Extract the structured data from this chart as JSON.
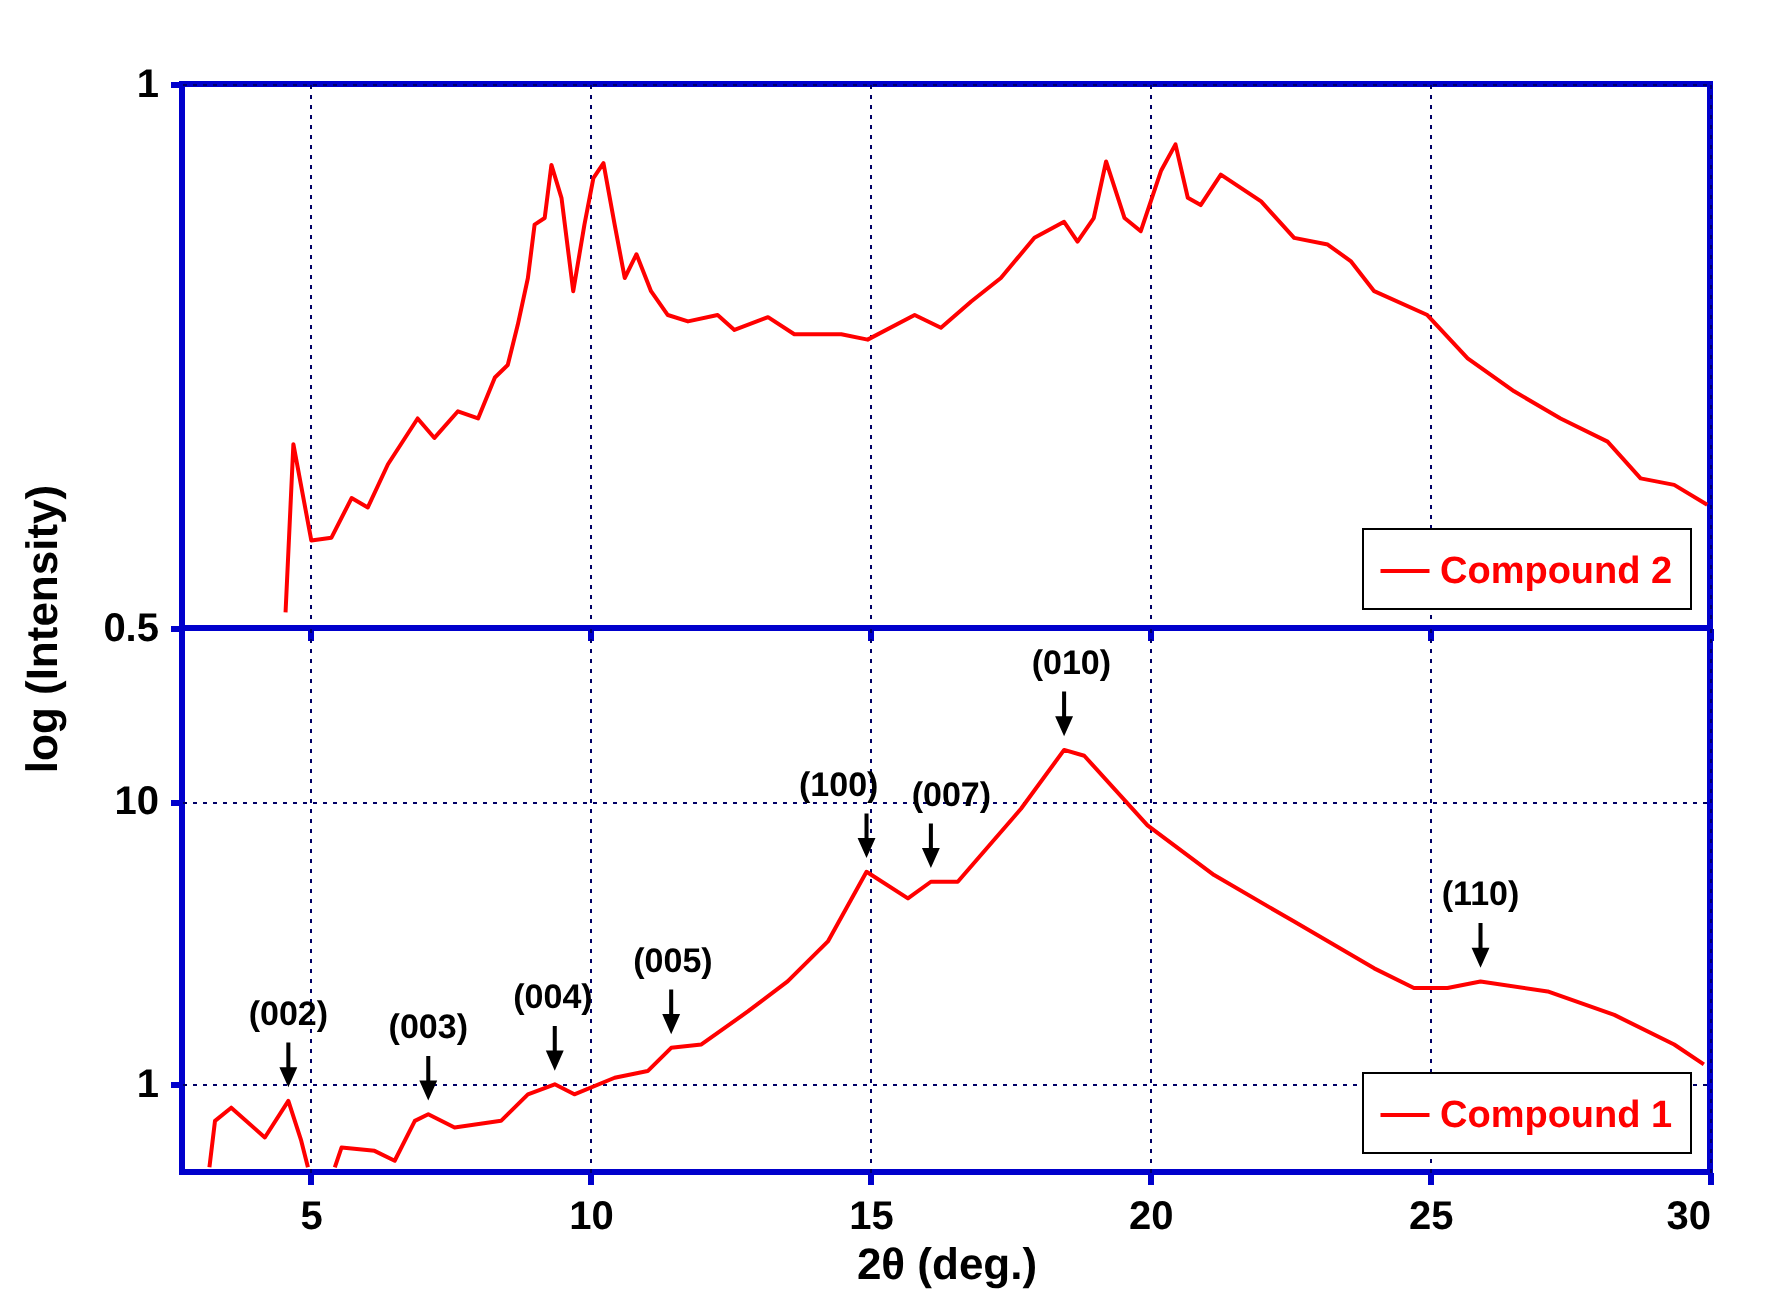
{
  "chart_data": [
    {
      "type": "line",
      "log": true,
      "grid": true,
      "legend": "bottom right",
      "tick_labels": "y",
      "line_style": "solid",
      "xlim": [
        2.7,
        30
      ],
      "xticks": [
        5,
        10,
        15,
        20,
        25,
        30
      ],
      "ylim": [
        0.5,
        1
      ],
      "yticks": [
        0.5,
        1
      ],
      "x": [
        4.55,
        4.69,
        5.01,
        5.37,
        5.73,
        6.02,
        6.38,
        6.91,
        7.21,
        7.63,
        7.99,
        8.29,
        8.52,
        8.7,
        8.88,
        9.0,
        9.18,
        9.3,
        9.48,
        9.69,
        9.89,
        10.05,
        10.23,
        10.43,
        10.61,
        10.82,
        11.08,
        11.38,
        11.74,
        12.27,
        12.57,
        13.17,
        13.64,
        14.48,
        14.95,
        15.79,
        16.26,
        16.8,
        17.33,
        17.93,
        18.46,
        18.7,
        18.99,
        19.21,
        19.54,
        19.83,
        20.19,
        20.45,
        20.67,
        20.9,
        21.26,
        21.98,
        22.57,
        23.17,
        23.58,
        24.0,
        24.95,
        25.67,
        26.5,
        27.33,
        28.17,
        28.76,
        29.36,
        29.95
      ],
      "series": [
        {
          "name": "Compound 2",
          "color": "#ff0000",
          "values": [
            0.51,
            0.632,
            0.559,
            0.561,
            0.59,
            0.583,
            0.616,
            0.653,
            0.637,
            0.659,
            0.653,
            0.688,
            0.699,
            0.736,
            0.781,
            0.836,
            0.843,
            0.902,
            0.865,
            0.768,
            0.836,
            0.887,
            0.904,
            0.836,
            0.781,
            0.805,
            0.768,
            0.745,
            0.739,
            0.745,
            0.731,
            0.743,
            0.727,
            0.727,
            0.722,
            0.745,
            0.733,
            0.758,
            0.781,
            0.822,
            0.839,
            0.818,
            0.843,
            0.906,
            0.843,
            0.829,
            0.895,
            0.926,
            0.865,
            0.857,
            0.891,
            0.861,
            0.822,
            0.815,
            0.798,
            0.768,
            0.745,
            0.705,
            0.676,
            0.653,
            0.634,
            0.605,
            0.6,
            0.585
          ]
        }
      ]
    },
    {
      "type": "line",
      "log": true,
      "grid": true,
      "legend": "bottom right",
      "line_style": "solid",
      "xlabel": "2θ (deg.)",
      "ylabel": "log (Intensity)",
      "xlim": [
        2.7,
        30
      ],
      "xticks": [
        5,
        10,
        15,
        20,
        25,
        30
      ],
      "ylim": [
        0.49,
        41
      ],
      "yticks": [
        1,
        10
      ],
      "x": [
        3.19,
        3.29,
        3.58,
        4.18,
        4.6,
        4.83,
        4.95,
        5.2,
        5.43,
        5.55,
        6.14,
        6.5,
        6.86,
        7.1,
        7.57,
        8.4,
        8.88,
        9.36,
        9.71,
        10.43,
        11.02,
        11.44,
        11.98,
        12.81,
        13.52,
        14.24,
        14.93,
        15.67,
        16.08,
        16.56,
        17.69,
        18.46,
        18.82,
        19.95,
        21.14,
        22.57,
        24.0,
        24.71,
        25.31,
        25.9,
        27.1,
        28.29,
        29.36,
        29.89
      ],
      "series": [
        {
          "name": "Compound 1",
          "color": "#ff0000",
          "values": [
            0.509,
            0.743,
            0.827,
            0.649,
            0.874,
            0.632,
            0.509,
            null,
            0.509,
            0.598,
            0.582,
            0.537,
            0.743,
            0.784,
            0.704,
            0.743,
            0.922,
            1.0,
            0.922,
            1.055,
            1.114,
            1.346,
            1.383,
            1.81,
            2.31,
            3.2,
            5.64,
            4.54,
            5.2,
            5.2,
            9.42,
            15.2,
            14.5,
            8.23,
            5.49,
            3.76,
            2.57,
            2.19,
            2.19,
            2.31,
            2.13,
            1.76,
            1.383,
            1.176
          ]
        }
      ],
      "annotations": [
        {
          "text": "(002)",
          "x": 4.6,
          "y": 0.874
        },
        {
          "text": "(003)",
          "x": 7.1,
          "y": 0.784
        },
        {
          "text": "(004)",
          "x": 9.36,
          "y": 1.0
        },
        {
          "text": "(005)",
          "x": 11.44,
          "y": 1.346
        },
        {
          "text": "(100)",
          "x": 14.93,
          "y": 5.64
        },
        {
          "text": "(007)",
          "x": 16.08,
          "y": 5.2
        },
        {
          "text": "(010)",
          "x": 18.46,
          "y": 15.2
        },
        {
          "text": "(110)",
          "x": 25.9,
          "y": 2.31
        }
      ]
    }
  ]
}
